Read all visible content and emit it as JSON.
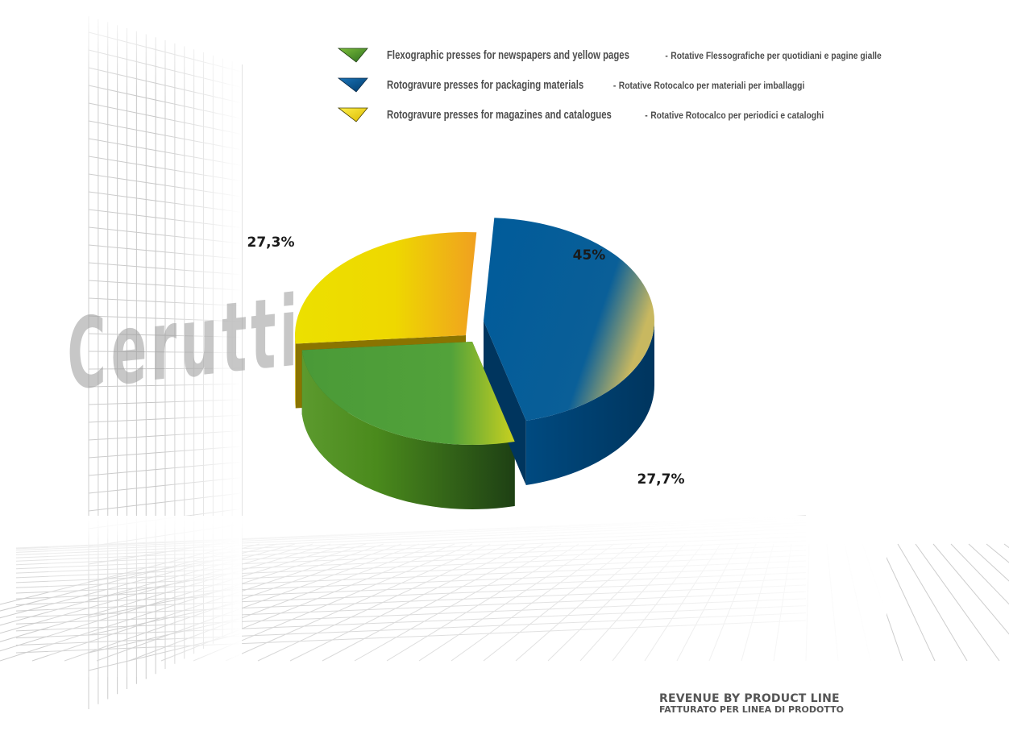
{
  "chart_data": {
    "type": "pie",
    "title": "REVENUE BY PRODUCT LINE",
    "subtitle": "FATTURATO PER LINEA DI PRODOTTO",
    "series": [
      {
        "name": "Flexographic presses for newspapers and yellow pages",
        "name_it": "Rotative Flessografiche per quotidiani e pagine gialle",
        "value": 27.7,
        "label": "27,7%",
        "color": "#4e9e38"
      },
      {
        "name": "Rotogravure presses for packaging materials",
        "name_it": "Rotative Rotocalco per materiali per imballaggi",
        "value": 45,
        "label": "45%",
        "color": "#005b9a"
      },
      {
        "name": "Rotogravure presses for magazines and catalogues",
        "name_it": "Rotative Rotocalco per periodici e cataloghi",
        "value": 27.3,
        "label": "27,3%",
        "color": "#ecd800"
      }
    ],
    "legend_position": "top-right"
  },
  "legend_separator": "-",
  "background_logo_text": "Cerutti"
}
